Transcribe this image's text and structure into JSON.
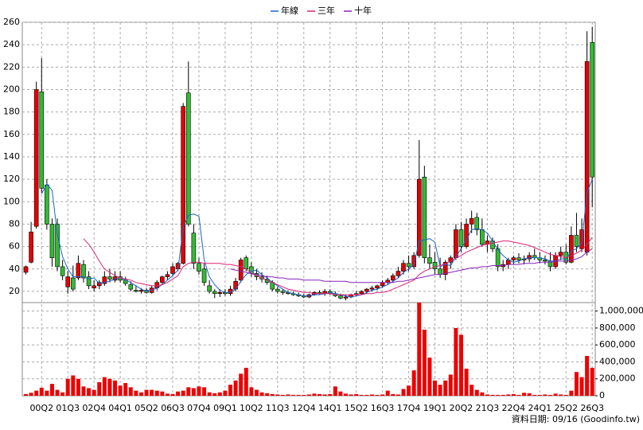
{
  "chart_data": {
    "type": "candlestick",
    "legend": "top",
    "grid": true,
    "categories": [
      null,
      null,
      null,
      "00Q2",
      null,
      null,
      null,
      null,
      "01Q3",
      null,
      null,
      null,
      null,
      "02Q4",
      null,
      null,
      null,
      null,
      "04Q1",
      null,
      null,
      null,
      null,
      "05Q2",
      null,
      null,
      null,
      null,
      "06Q3",
      null,
      null,
      null,
      null,
      "07Q4",
      null,
      null,
      null,
      null,
      "09Q1",
      null,
      null,
      null,
      null,
      "10Q2",
      null,
      null,
      null,
      null,
      "11Q3",
      null,
      null,
      null,
      null,
      "12Q4",
      null,
      null,
      null,
      null,
      "14Q1",
      null,
      null,
      null,
      null,
      "15Q2",
      null,
      null,
      null,
      null,
      "16Q3",
      null,
      null,
      null,
      null,
      "17Q4",
      null,
      null,
      null,
      null,
      "19Q1",
      null,
      null,
      null,
      null,
      "20Q2",
      null,
      null,
      null,
      null,
      "21Q3",
      null,
      null,
      null,
      null,
      "22Q4",
      null,
      null,
      null,
      null,
      "24Q1",
      null,
      null,
      null,
      null,
      "25Q2",
      null,
      null,
      null,
      null,
      "26Q3"
    ],
    "ylim": [
      10,
      260
    ],
    "yticks": [
      20,
      40,
      60,
      80,
      100,
      120,
      140,
      160,
      180,
      200,
      220,
      240,
      260
    ],
    "up_color": "#e60000",
    "down_color": "#33bb33",
    "candles": {
      "open": [
        37,
        46,
        78,
        198,
        115,
        80,
        80,
        42,
        24,
        32,
        32,
        44,
        33,
        23,
        25,
        27,
        33,
        30,
        33,
        30,
        26,
        21,
        20,
        21,
        19,
        23,
        28,
        33,
        36,
        40,
        45,
        197,
        72,
        45,
        40,
        25,
        20,
        18,
        19,
        18,
        22,
        30,
        50,
        42,
        36,
        33,
        31,
        28,
        22,
        20,
        19,
        18,
        17,
        16,
        15,
        17,
        19,
        18,
        20,
        18,
        16,
        14,
        15,
        17,
        18,
        20,
        22,
        23,
        25,
        28,
        30,
        34,
        38,
        45,
        42,
        52,
        122,
        50,
        46,
        40,
        35,
        46,
        50,
        75,
        60,
        80,
        86,
        75,
        62,
        65,
        58,
        42,
        44,
        48,
        50,
        48,
        49,
        52,
        50,
        48,
        47,
        42,
        52,
        55,
        46,
        70,
        58,
        55,
        242
      ],
      "high": [
        43,
        82,
        207,
        228,
        120,
        85,
        85,
        48,
        38,
        43,
        52,
        48,
        38,
        30,
        30,
        38,
        40,
        38,
        38,
        33,
        29,
        25,
        23,
        23,
        25,
        30,
        34,
        38,
        45,
        46,
        188,
        225,
        80,
        50,
        45,
        30,
        22,
        22,
        22,
        25,
        32,
        50,
        52,
        46,
        40,
        37,
        34,
        30,
        24,
        22,
        21,
        20,
        19,
        18,
        18,
        20,
        21,
        22,
        22,
        20,
        18,
        17,
        18,
        20,
        21,
        23,
        25,
        26,
        30,
        32,
        36,
        42,
        48,
        52,
        55,
        155,
        132,
        62,
        55,
        50,
        48,
        52,
        80,
        82,
        85,
        92,
        90,
        85,
        70,
        68,
        62,
        48,
        50,
        52,
        54,
        52,
        55,
        58,
        55,
        52,
        55,
        55,
        60,
        62,
        78,
        90,
        85,
        252,
        256
      ],
      "low": [
        35,
        45,
        76,
        108,
        75,
        42,
        38,
        30,
        18,
        20,
        30,
        28,
        22,
        20,
        22,
        25,
        28,
        28,
        28,
        25,
        20,
        19,
        18,
        18,
        18,
        21,
        26,
        30,
        34,
        38,
        44,
        78,
        40,
        35,
        25,
        18,
        14,
        15,
        16,
        16,
        20,
        28,
        38,
        33,
        30,
        28,
        26,
        20,
        18,
        17,
        17,
        16,
        15,
        14,
        14,
        16,
        17,
        16,
        17,
        15,
        13,
        12,
        14,
        16,
        17,
        18,
        20,
        21,
        23,
        26,
        28,
        32,
        35,
        38,
        40,
        50,
        45,
        40,
        35,
        32,
        30,
        40,
        48,
        55,
        58,
        72,
        70,
        60,
        55,
        55,
        38,
        38,
        40,
        44,
        45,
        44,
        46,
        48,
        45,
        44,
        38,
        40,
        48,
        44,
        45,
        55,
        55,
        52,
        95
      ],
      "close": [
        42,
        73,
        200,
        112,
        80,
        50,
        42,
        34,
        33,
        22,
        45,
        32,
        25,
        25,
        28,
        33,
        31,
        33,
        30,
        27,
        22,
        20,
        21,
        19,
        23,
        28,
        33,
        35,
        42,
        45,
        185,
        80,
        45,
        38,
        28,
        20,
        18,
        19,
        18,
        22,
        29,
        48,
        40,
        36,
        33,
        31,
        28,
        22,
        20,
        19,
        18,
        17,
        16,
        15,
        17,
        19,
        18,
        20,
        18,
        16,
        14,
        15,
        17,
        18,
        20,
        22,
        23,
        25,
        28,
        30,
        34,
        38,
        45,
        42,
        52,
        120,
        50,
        45,
        40,
        35,
        46,
        50,
        75,
        60,
        80,
        85,
        75,
        62,
        65,
        58,
        42,
        44,
        48,
        50,
        48,
        49,
        52,
        50,
        48,
        47,
        42,
        52,
        55,
        46,
        70,
        60,
        75,
        225,
        122
      ]
    },
    "series": [
      {
        "name": "年線",
        "color": "#1a66cc",
        "values": [
          null,
          null,
          null,
          107,
          116,
          110,
          71,
          51,
          40,
          33,
          33,
          33,
          31,
          32,
          27,
          28,
          29,
          31,
          32,
          30,
          28,
          25,
          22,
          20,
          21,
          23,
          26,
          30,
          34,
          39,
          77,
          88,
          89,
          87,
          48,
          33,
          26,
          21,
          19,
          19,
          22,
          29,
          35,
          38,
          39,
          35,
          32,
          28,
          25,
          22,
          19,
          18,
          17,
          16,
          16,
          17,
          17,
          18,
          19,
          18,
          17,
          16,
          15,
          16,
          17,
          19,
          21,
          22,
          24,
          26,
          29,
          32,
          37,
          40,
          44,
          65,
          66,
          67,
          64,
          42,
          44,
          43,
          51,
          58,
          66,
          75,
          76,
          75,
          72,
          65,
          57,
          52,
          48,
          46,
          47,
          49,
          50,
          50,
          50,
          49,
          47,
          47,
          49,
          49,
          56,
          58,
          63,
          108,
          120
        ]
      },
      {
        "name": "三年",
        "color": "#dd2277",
        "values": [
          null,
          null,
          null,
          null,
          null,
          null,
          null,
          null,
          null,
          null,
          null,
          67,
          62,
          55,
          47,
          40,
          37,
          34,
          32,
          31,
          30,
          28,
          27,
          26,
          25,
          25,
          26,
          28,
          31,
          34,
          42,
          45,
          46,
          46,
          45,
          45,
          45,
          45,
          44,
          44,
          43,
          42,
          40,
          36,
          34,
          32,
          30,
          28,
          26,
          24,
          22,
          21,
          20,
          19,
          19,
          18,
          18,
          18,
          18,
          17,
          17,
          17,
          17,
          17,
          17,
          18,
          18,
          19,
          19,
          20,
          22,
          24,
          26,
          28,
          30,
          35,
          38,
          40,
          42,
          43,
          45,
          47,
          50,
          52,
          55,
          57,
          59,
          61,
          62,
          63,
          64,
          65,
          65,
          64,
          63,
          62,
          61,
          59,
          57,
          55,
          53,
          52,
          51,
          50,
          52,
          54,
          57,
          62,
          68
        ]
      },
      {
        "name": "十年",
        "color": "#8822bb",
        "values": [
          null,
          null,
          null,
          null,
          null,
          null,
          null,
          null,
          null,
          null,
          null,
          null,
          null,
          null,
          null,
          null,
          null,
          null,
          null,
          null,
          null,
          null,
          null,
          null,
          null,
          null,
          null,
          null,
          null,
          null,
          null,
          null,
          null,
          null,
          null,
          null,
          null,
          null,
          null,
          40,
          39,
          38,
          37,
          36,
          35,
          34,
          33,
          33,
          32,
          32,
          31,
          31,
          31,
          30,
          30,
          30,
          30,
          29,
          29,
          29,
          29,
          29,
          28,
          28,
          28,
          28,
          28,
          28,
          28,
          28,
          28,
          29,
          29,
          30,
          31,
          32,
          33,
          34,
          35,
          35,
          36,
          37,
          38,
          39,
          40,
          41,
          41,
          42,
          42,
          43,
          43,
          43,
          44,
          44,
          44,
          45,
          45,
          45,
          46,
          46,
          46,
          47,
          47,
          47,
          48,
          49,
          51,
          55,
          58
        ]
      }
    ],
    "volume": {
      "color": "#ee0000",
      "ylim": [
        0,
        1100000
      ],
      "yticks": [
        0,
        {
          "value": 200000,
          "label": "200,000"
        },
        {
          "value": 400000,
          "label": "400,000"
        },
        {
          "value": 600000,
          "label": "600,000"
        },
        {
          "value": 800000,
          "label": "800,000"
        },
        {
          "value": 1000000,
          "label": "1,000,000"
        }
      ],
      "values": [
        20000,
        35000,
        60000,
        95000,
        60000,
        140000,
        70000,
        40000,
        200000,
        240000,
        200000,
        110000,
        90000,
        70000,
        160000,
        220000,
        200000,
        180000,
        120000,
        150000,
        100000,
        60000,
        40000,
        70000,
        70000,
        60000,
        50000,
        25000,
        20000,
        50000,
        60000,
        100000,
        90000,
        110000,
        100000,
        40000,
        30000,
        40000,
        60000,
        130000,
        180000,
        260000,
        330000,
        100000,
        70000,
        40000,
        30000,
        20000,
        15000,
        10000,
        15000,
        10000,
        10000,
        10000,
        15000,
        25000,
        20000,
        15000,
        20000,
        110000,
        50000,
        25000,
        15000,
        20000,
        10000,
        10000,
        15000,
        10000,
        15000,
        60000,
        20000,
        15000,
        80000,
        120000,
        300000,
        1100000,
        780000,
        450000,
        180000,
        130000,
        180000,
        250000,
        800000,
        720000,
        320000,
        130000,
        70000,
        40000,
        15000,
        10000,
        10000,
        10000,
        15000,
        20000,
        10000,
        35000,
        30000,
        10000,
        10000,
        15000,
        10000,
        25000,
        15000,
        10000,
        60000,
        280000,
        220000,
        470000,
        330000
      ]
    },
    "source_note": "資料日期: 09/16  (Goodinfo.tw)"
  }
}
